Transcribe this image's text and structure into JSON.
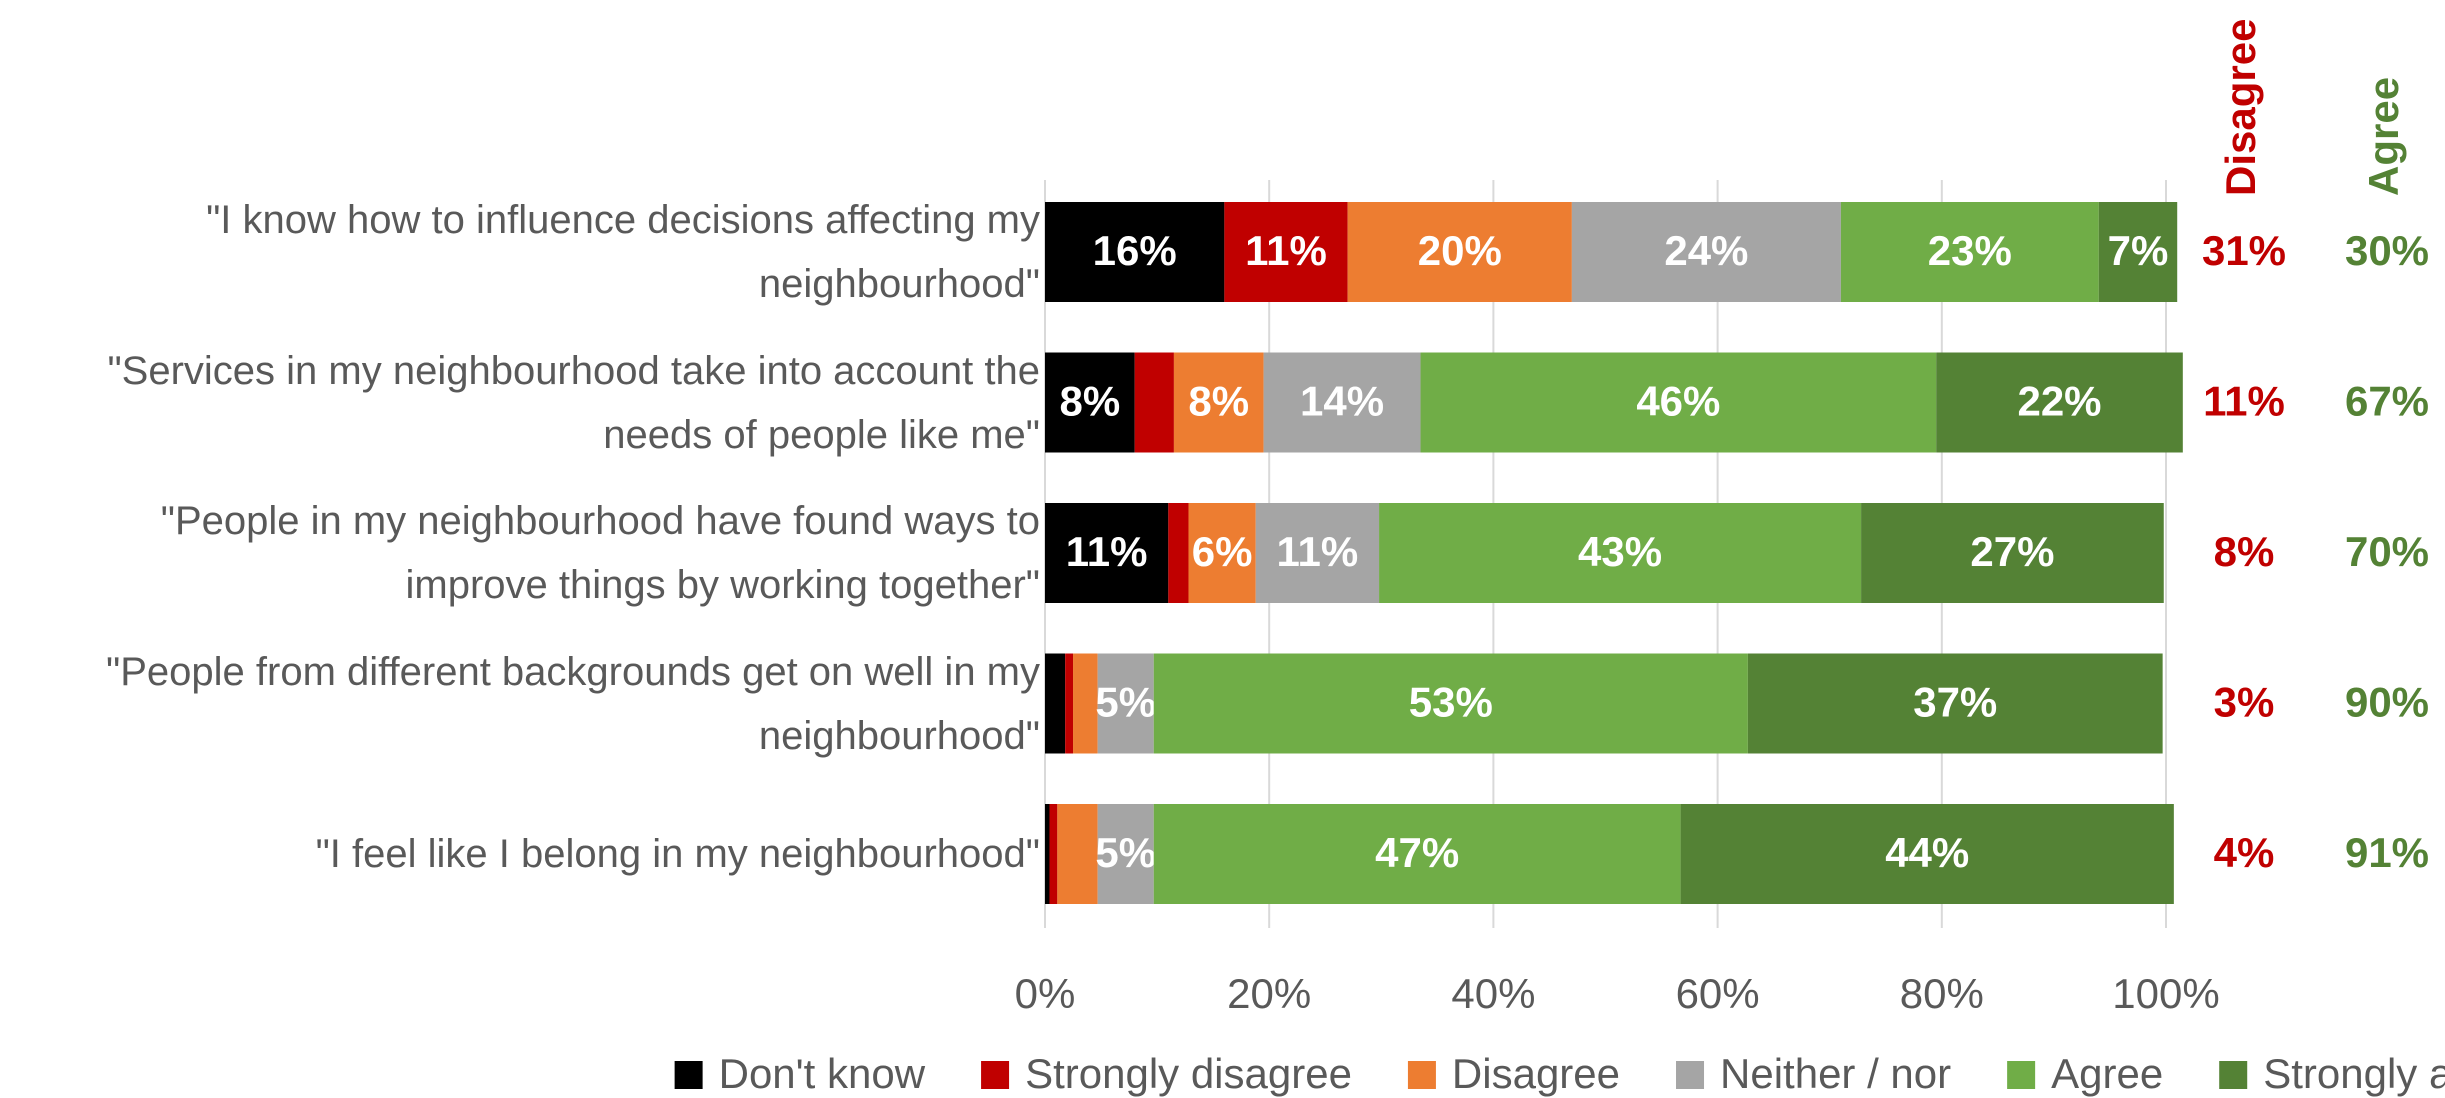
{
  "chart_data": {
    "type": "stacked-bar-horizontal",
    "categories": [
      "\"I know how to influence decisions affecting my neighbourhood\"",
      "\"Services in my neighbourhood take into account the needs of people like me\"",
      "\"People in my neighbourhood have found ways to improve things by working together\"",
      "\"People from different backgrounds get on well in my neighbourhood\"",
      "\"I feel like I belong in my neighbourhood\""
    ],
    "series": [
      {
        "name": "Don't know",
        "color": "#000000",
        "values": [
          16,
          8,
          11,
          1.8,
          0.4
        ],
        "value_labels": [
          "16%",
          "8%",
          "11%",
          null,
          null
        ]
      },
      {
        "name": "Strongly disagree",
        "color": "#c00000",
        "values": [
          11,
          3.5,
          1.8,
          0.7,
          0.7
        ],
        "value_labels": [
          "11%",
          null,
          null,
          null,
          null
        ]
      },
      {
        "name": "Disagree",
        "color": "#ed7d31",
        "values": [
          20,
          8,
          6,
          2.2,
          3.6
        ],
        "value_labels": [
          "20%",
          "8%",
          "6%",
          null,
          null
        ]
      },
      {
        "name": "Neither / nor",
        "color": "#a5a5a5",
        "values": [
          24,
          14,
          11,
          5,
          5
        ],
        "value_labels": [
          "24%",
          "14%",
          "11%",
          "5%",
          "5%"
        ]
      },
      {
        "name": "Agree",
        "color": "#70ad47",
        "values": [
          23,
          46,
          43,
          53,
          47
        ],
        "value_labels": [
          "23%",
          "46%",
          "43%",
          "53%",
          "47%"
        ]
      },
      {
        "name": "Strongly agree",
        "color": "#548235",
        "values": [
          7,
          22,
          27,
          37,
          44
        ],
        "value_labels": [
          "7%",
          "22%",
          "27%",
          "37%",
          "44%"
        ]
      }
    ],
    "totals": [
      {
        "name": "Disagree",
        "color": "#c00000",
        "values": [
          31,
          11,
          8,
          3,
          4
        ],
        "value_labels": [
          "31%",
          "11%",
          "8%",
          "3%",
          "4%"
        ]
      },
      {
        "name": "Agree",
        "color": "#548235",
        "values": [
          30,
          67,
          70,
          90,
          91
        ],
        "value_labels": [
          "30%",
          "67%",
          "70%",
          "90%",
          "91%"
        ]
      }
    ],
    "xlim": [
      0,
      100
    ],
    "xticks": [
      {
        "value": 0,
        "label": "0%"
      },
      {
        "value": 20,
        "label": "20%"
      },
      {
        "value": 40,
        "label": "40%"
      },
      {
        "value": 60,
        "label": "60%"
      },
      {
        "value": 80,
        "label": "80%"
      },
      {
        "value": 100,
        "label": "100%"
      }
    ],
    "grid": true,
    "legend": "bottom"
  }
}
